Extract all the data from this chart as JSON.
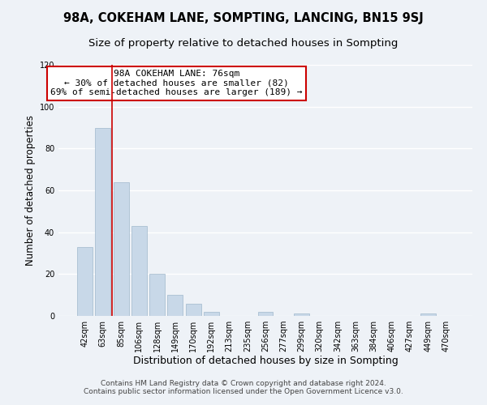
{
  "title": "98A, COKEHAM LANE, SOMPTING, LANCING, BN15 9SJ",
  "subtitle": "Size of property relative to detached houses in Sompting",
  "xlabel": "Distribution of detached houses by size in Sompting",
  "ylabel": "Number of detached properties",
  "bar_labels": [
    "42sqm",
    "63sqm",
    "85sqm",
    "106sqm",
    "128sqm",
    "149sqm",
    "170sqm",
    "192sqm",
    "213sqm",
    "235sqm",
    "256sqm",
    "277sqm",
    "299sqm",
    "320sqm",
    "342sqm",
    "363sqm",
    "384sqm",
    "406sqm",
    "427sqm",
    "449sqm",
    "470sqm"
  ],
  "bar_values": [
    33,
    90,
    64,
    43,
    20,
    10,
    6,
    2,
    0,
    0,
    2,
    0,
    1,
    0,
    0,
    0,
    0,
    0,
    0,
    1,
    0
  ],
  "bar_color": "#c8d8e8",
  "bar_edge_color": "#a0b8cc",
  "vline_x": 1.5,
  "vline_color": "#cc0000",
  "annotation_line1": "98A COKEHAM LANE: 76sqm",
  "annotation_line2": "← 30% of detached houses are smaller (82)",
  "annotation_line3": "69% of semi-detached houses are larger (189) →",
  "annotation_box_color": "#ffffff",
  "annotation_box_edge": "#cc0000",
  "ylim": [
    0,
    120
  ],
  "yticks": [
    0,
    20,
    40,
    60,
    80,
    100,
    120
  ],
  "footer_line1": "Contains HM Land Registry data © Crown copyright and database right 2024.",
  "footer_line2": "Contains public sector information licensed under the Open Government Licence v3.0.",
  "bg_color": "#eef2f7",
  "grid_color": "#ffffff",
  "title_fontsize": 10.5,
  "subtitle_fontsize": 9.5,
  "xlabel_fontsize": 9,
  "ylabel_fontsize": 8.5,
  "tick_fontsize": 7,
  "annotation_fontsize": 8,
  "footer_fontsize": 6.5
}
